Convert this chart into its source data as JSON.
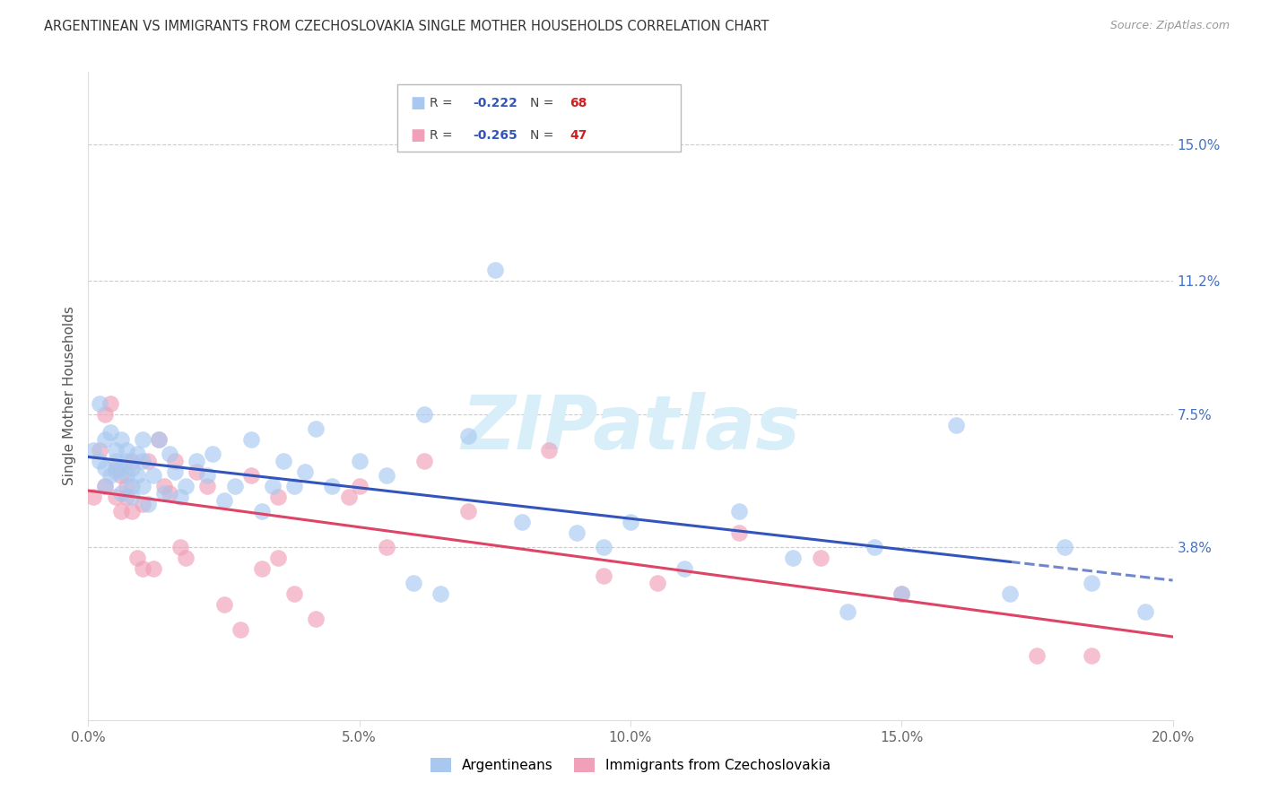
{
  "title": "ARGENTINEAN VS IMMIGRANTS FROM CZECHOSLOVAKIA SINGLE MOTHER HOUSEHOLDS CORRELATION CHART",
  "source": "Source: ZipAtlas.com",
  "ylabel": "Single Mother Households",
  "xlabel_ticks": [
    "0.0%",
    "5.0%",
    "10.0%",
    "15.0%",
    "20.0%"
  ],
  "xlabel_vals": [
    0.0,
    5.0,
    10.0,
    15.0,
    20.0
  ],
  "ylabel_ticks": [
    "3.8%",
    "7.5%",
    "11.2%",
    "15.0%"
  ],
  "ylabel_vals": [
    3.8,
    7.5,
    11.2,
    15.0
  ],
  "xlim": [
    0.0,
    20.0
  ],
  "ylim": [
    -1.0,
    17.0
  ],
  "blue_label": "Argentineans",
  "pink_label": "Immigrants from Czechoslovakia",
  "blue_R": "-0.222",
  "blue_N": "68",
  "pink_R": "-0.265",
  "pink_N": "47",
  "blue_color": "#A8C8F0",
  "pink_color": "#F0A0B8",
  "blue_line_color": "#3355BB",
  "pink_line_color": "#DD4466",
  "axis_label_color": "#4472C4",
  "watermark": "ZIPatlas",
  "watermark_color": "#D8EEF8",
  "blue_x": [
    0.1,
    0.2,
    0.2,
    0.3,
    0.3,
    0.3,
    0.4,
    0.4,
    0.5,
    0.5,
    0.5,
    0.6,
    0.6,
    0.6,
    0.7,
    0.7,
    0.7,
    0.8,
    0.8,
    0.8,
    0.9,
    0.9,
    1.0,
    1.0,
    1.0,
    1.1,
    1.2,
    1.3,
    1.4,
    1.5,
    1.6,
    1.7,
    1.8,
    2.0,
    2.2,
    2.3,
    2.5,
    2.7,
    3.0,
    3.2,
    3.4,
    3.6,
    3.8,
    4.0,
    4.2,
    4.5,
    5.0,
    5.5,
    6.0,
    6.2,
    6.5,
    7.0,
    8.0,
    9.0,
    9.5,
    10.0,
    11.0,
    12.0,
    13.0,
    14.0,
    14.5,
    15.0,
    16.0,
    17.0,
    18.0,
    18.5,
    19.5,
    7.5
  ],
  "blue_y": [
    6.5,
    7.8,
    6.2,
    6.8,
    6.0,
    5.5,
    7.0,
    5.8,
    6.5,
    5.9,
    6.2,
    6.8,
    6.0,
    5.3,
    6.2,
    5.8,
    6.5,
    5.5,
    6.0,
    5.2,
    5.8,
    6.4,
    6.2,
    5.5,
    6.8,
    5.0,
    5.8,
    6.8,
    5.3,
    6.4,
    5.9,
    5.2,
    5.5,
    6.2,
    5.8,
    6.4,
    5.1,
    5.5,
    6.8,
    4.8,
    5.5,
    6.2,
    5.5,
    5.9,
    7.1,
    5.5,
    6.2,
    5.8,
    2.8,
    7.5,
    2.5,
    6.9,
    4.5,
    4.2,
    3.8,
    4.5,
    3.2,
    4.8,
    3.5,
    2.0,
    3.8,
    2.5,
    7.2,
    2.5,
    3.8,
    2.8,
    2.0,
    11.5
  ],
  "pink_x": [
    0.1,
    0.2,
    0.3,
    0.3,
    0.4,
    0.5,
    0.5,
    0.6,
    0.6,
    0.7,
    0.7,
    0.8,
    0.8,
    0.9,
    1.0,
    1.0,
    1.1,
    1.2,
    1.3,
    1.4,
    1.5,
    1.6,
    1.7,
    1.8,
    2.0,
    2.2,
    2.5,
    2.8,
    3.0,
    3.2,
    3.5,
    3.8,
    4.2,
    5.0,
    5.5,
    6.2,
    7.0,
    8.5,
    9.5,
    10.5,
    12.0,
    13.5,
    15.0,
    17.5,
    18.5,
    3.5,
    4.8
  ],
  "pink_y": [
    5.2,
    6.5,
    7.5,
    5.5,
    7.8,
    5.2,
    6.0,
    4.8,
    5.8,
    5.2,
    5.5,
    4.8,
    6.2,
    3.5,
    5.0,
    3.2,
    6.2,
    3.2,
    6.8,
    5.5,
    5.3,
    6.2,
    3.8,
    3.5,
    5.9,
    5.5,
    2.2,
    1.5,
    5.8,
    3.2,
    5.2,
    2.5,
    1.8,
    5.5,
    3.8,
    6.2,
    4.8,
    6.5,
    3.0,
    2.8,
    4.2,
    3.5,
    2.5,
    0.8,
    0.8,
    3.5,
    5.2
  ]
}
